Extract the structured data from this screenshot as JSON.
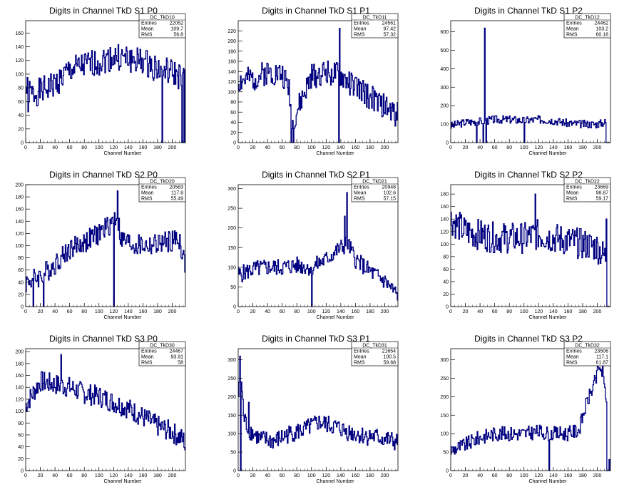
{
  "chart_data": [
    {
      "type": "histogram",
      "title": "Digits in Channel TkD S1 P0",
      "xlabel": "Channel Number",
      "ylabel": "",
      "xlim": [
        0,
        218
      ],
      "ylim": [
        0,
        178
      ],
      "xticks": [
        0,
        20,
        40,
        60,
        80,
        100,
        120,
        140,
        160,
        180,
        200
      ],
      "yticks": [
        0,
        20,
        40,
        60,
        80,
        100,
        120,
        140,
        160
      ],
      "stats": {
        "name": "DC_TkD10",
        "entries": "22052",
        "mean": "109.7",
        "rms": "56.8"
      },
      "profile": [
        [
          0,
          80
        ],
        [
          8,
          70
        ],
        [
          20,
          75
        ],
        [
          40,
          85
        ],
        [
          60,
          105
        ],
        [
          80,
          112
        ],
        [
          100,
          118
        ],
        [
          120,
          125
        ],
        [
          140,
          122
        ],
        [
          160,
          118
        ],
        [
          180,
          108
        ],
        [
          200,
          102
        ],
        [
          212,
          95
        ],
        [
          217,
          90
        ]
      ],
      "spikes": [
        [
          186,
          0
        ],
        [
          213,
          0
        ],
        [
          216,
          0
        ],
        [
          3,
          45
        ]
      ],
      "noise": 20,
      "seed": 1
    },
    {
      "type": "histogram",
      "title": "Digits in Channel TkD S1 P1",
      "xlabel": "Channel Number",
      "ylabel": "",
      "xlim": [
        0,
        218
      ],
      "ylim": [
        0,
        240
      ],
      "xticks": [
        0,
        20,
        40,
        60,
        80,
        100,
        120,
        140,
        160,
        180,
        200
      ],
      "yticks": [
        0,
        20,
        40,
        60,
        80,
        100,
        120,
        140,
        160,
        180,
        200,
        220
      ],
      "stats": {
        "name": "DC_TkD11",
        "entries": "24561",
        "mean": "97.42",
        "rms": "57.32"
      },
      "profile": [
        [
          0,
          120
        ],
        [
          20,
          125
        ],
        [
          40,
          140
        ],
        [
          60,
          135
        ],
        [
          70,
          105
        ],
        [
          74,
          40
        ],
        [
          80,
          60
        ],
        [
          100,
          130
        ],
        [
          120,
          140
        ],
        [
          140,
          130
        ],
        [
          160,
          110
        ],
        [
          180,
          90
        ],
        [
          200,
          70
        ],
        [
          217,
          55
        ]
      ],
      "spikes": [
        [
          72,
          0
        ],
        [
          137,
          0
        ],
        [
          138,
          225
        ],
        [
          75,
          0
        ]
      ],
      "noise": 25,
      "seed": 2
    },
    {
      "type": "histogram",
      "title": "Digits in Channel TkD S1 P2",
      "xlabel": "Channel Number",
      "ylabel": "",
      "xlim": [
        0,
        218
      ],
      "ylim": [
        0,
        660
      ],
      "xticks": [
        0,
        20,
        40,
        60,
        80,
        100,
        120,
        140,
        160,
        180,
        200
      ],
      "yticks": [
        0,
        100,
        200,
        300,
        400,
        500,
        600
      ],
      "stats": {
        "name": "DC_TkD12",
        "entries": "24462",
        "mean": "103.2",
        "rms": "60.18"
      },
      "profile": [
        [
          0,
          90
        ],
        [
          20,
          110
        ],
        [
          40,
          115
        ],
        [
          60,
          125
        ],
        [
          80,
          125
        ],
        [
          100,
          120
        ],
        [
          120,
          125
        ],
        [
          140,
          120
        ],
        [
          160,
          105
        ],
        [
          180,
          100
        ],
        [
          200,
          100
        ],
        [
          210,
          110
        ]
      ],
      "spikes": [
        [
          46,
          620
        ],
        [
          44,
          0
        ],
        [
          35,
          0
        ],
        [
          100,
          0
        ],
        [
          48,
          0
        ]
      ],
      "noise": 22,
      "seed": 3,
      "end": 212
    },
    {
      "type": "histogram",
      "title": "Digits in Channel TkD S2 P0",
      "xlabel": "Channel Number",
      "ylabel": "",
      "xlim": [
        0,
        218
      ],
      "ylim": [
        0,
        200
      ],
      "xticks": [
        0,
        20,
        40,
        60,
        80,
        100,
        120,
        140,
        160,
        180,
        200
      ],
      "yticks": [
        0,
        20,
        40,
        60,
        80,
        100,
        120,
        140,
        160,
        180,
        200
      ],
      "stats": {
        "name": "DC_TkD20",
        "entries": "20583",
        "mean": "117.8",
        "rms": "55.49"
      },
      "profile": [
        [
          0,
          40
        ],
        [
          20,
          50
        ],
        [
          40,
          70
        ],
        [
          60,
          95
        ],
        [
          80,
          105
        ],
        [
          100,
          120
        ],
        [
          115,
          135
        ],
        [
          125,
          150
        ],
        [
          130,
          110
        ],
        [
          150,
          100
        ],
        [
          170,
          100
        ],
        [
          190,
          105
        ],
        [
          210,
          110
        ],
        [
          217,
          70
        ]
      ],
      "spikes": [
        [
          120,
          0
        ],
        [
          125,
          190
        ],
        [
          24,
          0
        ],
        [
          10,
          0
        ]
      ],
      "noise": 18,
      "seed": 4
    },
    {
      "type": "histogram",
      "title": "Digits in Channel TkD S2 P1",
      "xlabel": "Channel Number",
      "ylabel": "",
      "xlim": [
        0,
        218
      ],
      "ylim": [
        0,
        310
      ],
      "xticks": [
        0,
        20,
        40,
        60,
        80,
        100,
        120,
        140,
        160,
        180,
        200
      ],
      "yticks": [
        0,
        50,
        100,
        150,
        200,
        250,
        300
      ],
      "stats": {
        "name": "DC_TkD21",
        "entries": "20948",
        "mean": "102.6",
        "rms": "57.15"
      },
      "profile": [
        [
          0,
          80
        ],
        [
          20,
          95
        ],
        [
          40,
          100
        ],
        [
          60,
          100
        ],
        [
          80,
          105
        ],
        [
          100,
          100
        ],
        [
          120,
          120
        ],
        [
          140,
          150
        ],
        [
          150,
          160
        ],
        [
          160,
          120
        ],
        [
          180,
          90
        ],
        [
          200,
          65
        ],
        [
          217,
          30
        ]
      ],
      "spikes": [
        [
          148,
          290
        ],
        [
          100,
          0
        ],
        [
          145,
          230
        ]
      ],
      "noise": 22,
      "seed": 5
    },
    {
      "type": "histogram",
      "title": "Digits in Channel TkD S2 P2",
      "xlabel": "Channel Number",
      "ylabel": "",
      "xlim": [
        0,
        218
      ],
      "ylim": [
        0,
        195
      ],
      "xticks": [
        0,
        20,
        40,
        60,
        80,
        100,
        120,
        140,
        160,
        180,
        200
      ],
      "yticks": [
        0,
        20,
        40,
        60,
        80,
        100,
        120,
        140,
        160,
        180
      ],
      "stats": {
        "name": "DC_TkD22",
        "entries": "23669",
        "mean": "98.87",
        "rms": "59.17"
      },
      "profile": [
        [
          0,
          140
        ],
        [
          20,
          120
        ],
        [
          40,
          115
        ],
        [
          60,
          110
        ],
        [
          80,
          110
        ],
        [
          100,
          110
        ],
        [
          120,
          115
        ],
        [
          140,
          110
        ],
        [
          160,
          105
        ],
        [
          180,
          100
        ],
        [
          200,
          95
        ],
        [
          210,
          80
        ]
      ],
      "spikes": [
        [
          212,
          140
        ],
        [
          213,
          0
        ],
        [
          115,
          180
        ]
      ],
      "noise": 25,
      "seed": 6,
      "end": 214
    },
    {
      "type": "histogram",
      "title": "Digits in Channel TkD S3 P0",
      "xlabel": "Channel Number",
      "ylabel": "",
      "xlim": [
        0,
        218
      ],
      "ylim": [
        0,
        205
      ],
      "xticks": [
        0,
        20,
        40,
        60,
        80,
        100,
        120,
        140,
        160,
        180,
        200
      ],
      "yticks": [
        0,
        20,
        40,
        60,
        80,
        100,
        120,
        140,
        160,
        180,
        200
      ],
      "stats": {
        "name": "DC_TkD30",
        "entries": "24467",
        "mean": "93.91",
        "rms": "58"
      },
      "profile": [
        [
          0,
          110
        ],
        [
          20,
          150
        ],
        [
          40,
          145
        ],
        [
          60,
          140
        ],
        [
          80,
          130
        ],
        [
          100,
          125
        ],
        [
          120,
          115
        ],
        [
          140,
          105
        ],
        [
          160,
          90
        ],
        [
          180,
          75
        ],
        [
          200,
          65
        ],
        [
          217,
          50
        ]
      ],
      "spikes": [
        [
          48,
          195
        ],
        [
          217,
          35
        ]
      ],
      "noise": 18,
      "seed": 7
    },
    {
      "type": "histogram",
      "title": "Digits in Channel TkD S3 P1",
      "xlabel": "Channel Number",
      "ylabel": "",
      "xlim": [
        0,
        218
      ],
      "ylim": [
        0,
        330
      ],
      "xticks": [
        0,
        20,
        40,
        60,
        80,
        100,
        120,
        140,
        160,
        180,
        200
      ],
      "yticks": [
        0,
        50,
        100,
        150,
        200,
        250,
        300
      ],
      "stats": {
        "name": "DC_TkD31",
        "entries": "21654",
        "mean": "100.5",
        "rms": "59.68"
      },
      "profile": [
        [
          0,
          200
        ],
        [
          4,
          250
        ],
        [
          8,
          140
        ],
        [
          15,
          110
        ],
        [
          30,
          85
        ],
        [
          50,
          80
        ],
        [
          70,
          100
        ],
        [
          90,
          110
        ],
        [
          110,
          130
        ],
        [
          130,
          120
        ],
        [
          150,
          105
        ],
        [
          170,
          95
        ],
        [
          190,
          90
        ],
        [
          210,
          80
        ],
        [
          217,
          75
        ]
      ],
      "spikes": [
        [
          2,
          310
        ],
        [
          3,
          0
        ],
        [
          14,
          185
        ]
      ],
      "noise": 25,
      "seed": 8
    },
    {
      "type": "histogram",
      "title": "Digits in Channel TkD S3 P2",
      "xlabel": "Channel Number",
      "ylabel": "",
      "xlim": [
        0,
        218
      ],
      "ylim": [
        0,
        330
      ],
      "xticks": [
        0,
        20,
        40,
        60,
        80,
        100,
        120,
        140,
        160,
        180,
        200
      ],
      "yticks": [
        0,
        50,
        100,
        150,
        200,
        250,
        300
      ],
      "stats": {
        "name": "DC_TkD32",
        "entries": "23506",
        "mean": "117.1",
        "rms": "61.87"
      },
      "profile": [
        [
          0,
          55
        ],
        [
          20,
          70
        ],
        [
          40,
          90
        ],
        [
          60,
          100
        ],
        [
          80,
          100
        ],
        [
          100,
          100
        ],
        [
          120,
          105
        ],
        [
          140,
          100
        ],
        [
          160,
          100
        ],
        [
          175,
          110
        ],
        [
          185,
          180
        ],
        [
          195,
          230
        ],
        [
          205,
          280
        ],
        [
          212,
          200
        ]
      ],
      "spikes": [
        [
          134,
          0
        ],
        [
          200,
          310
        ],
        [
          207,
          300
        ],
        [
          213,
          0
        ],
        [
          216,
          30
        ]
      ],
      "noise": 20,
      "seed": 9,
      "end": 214
    }
  ]
}
